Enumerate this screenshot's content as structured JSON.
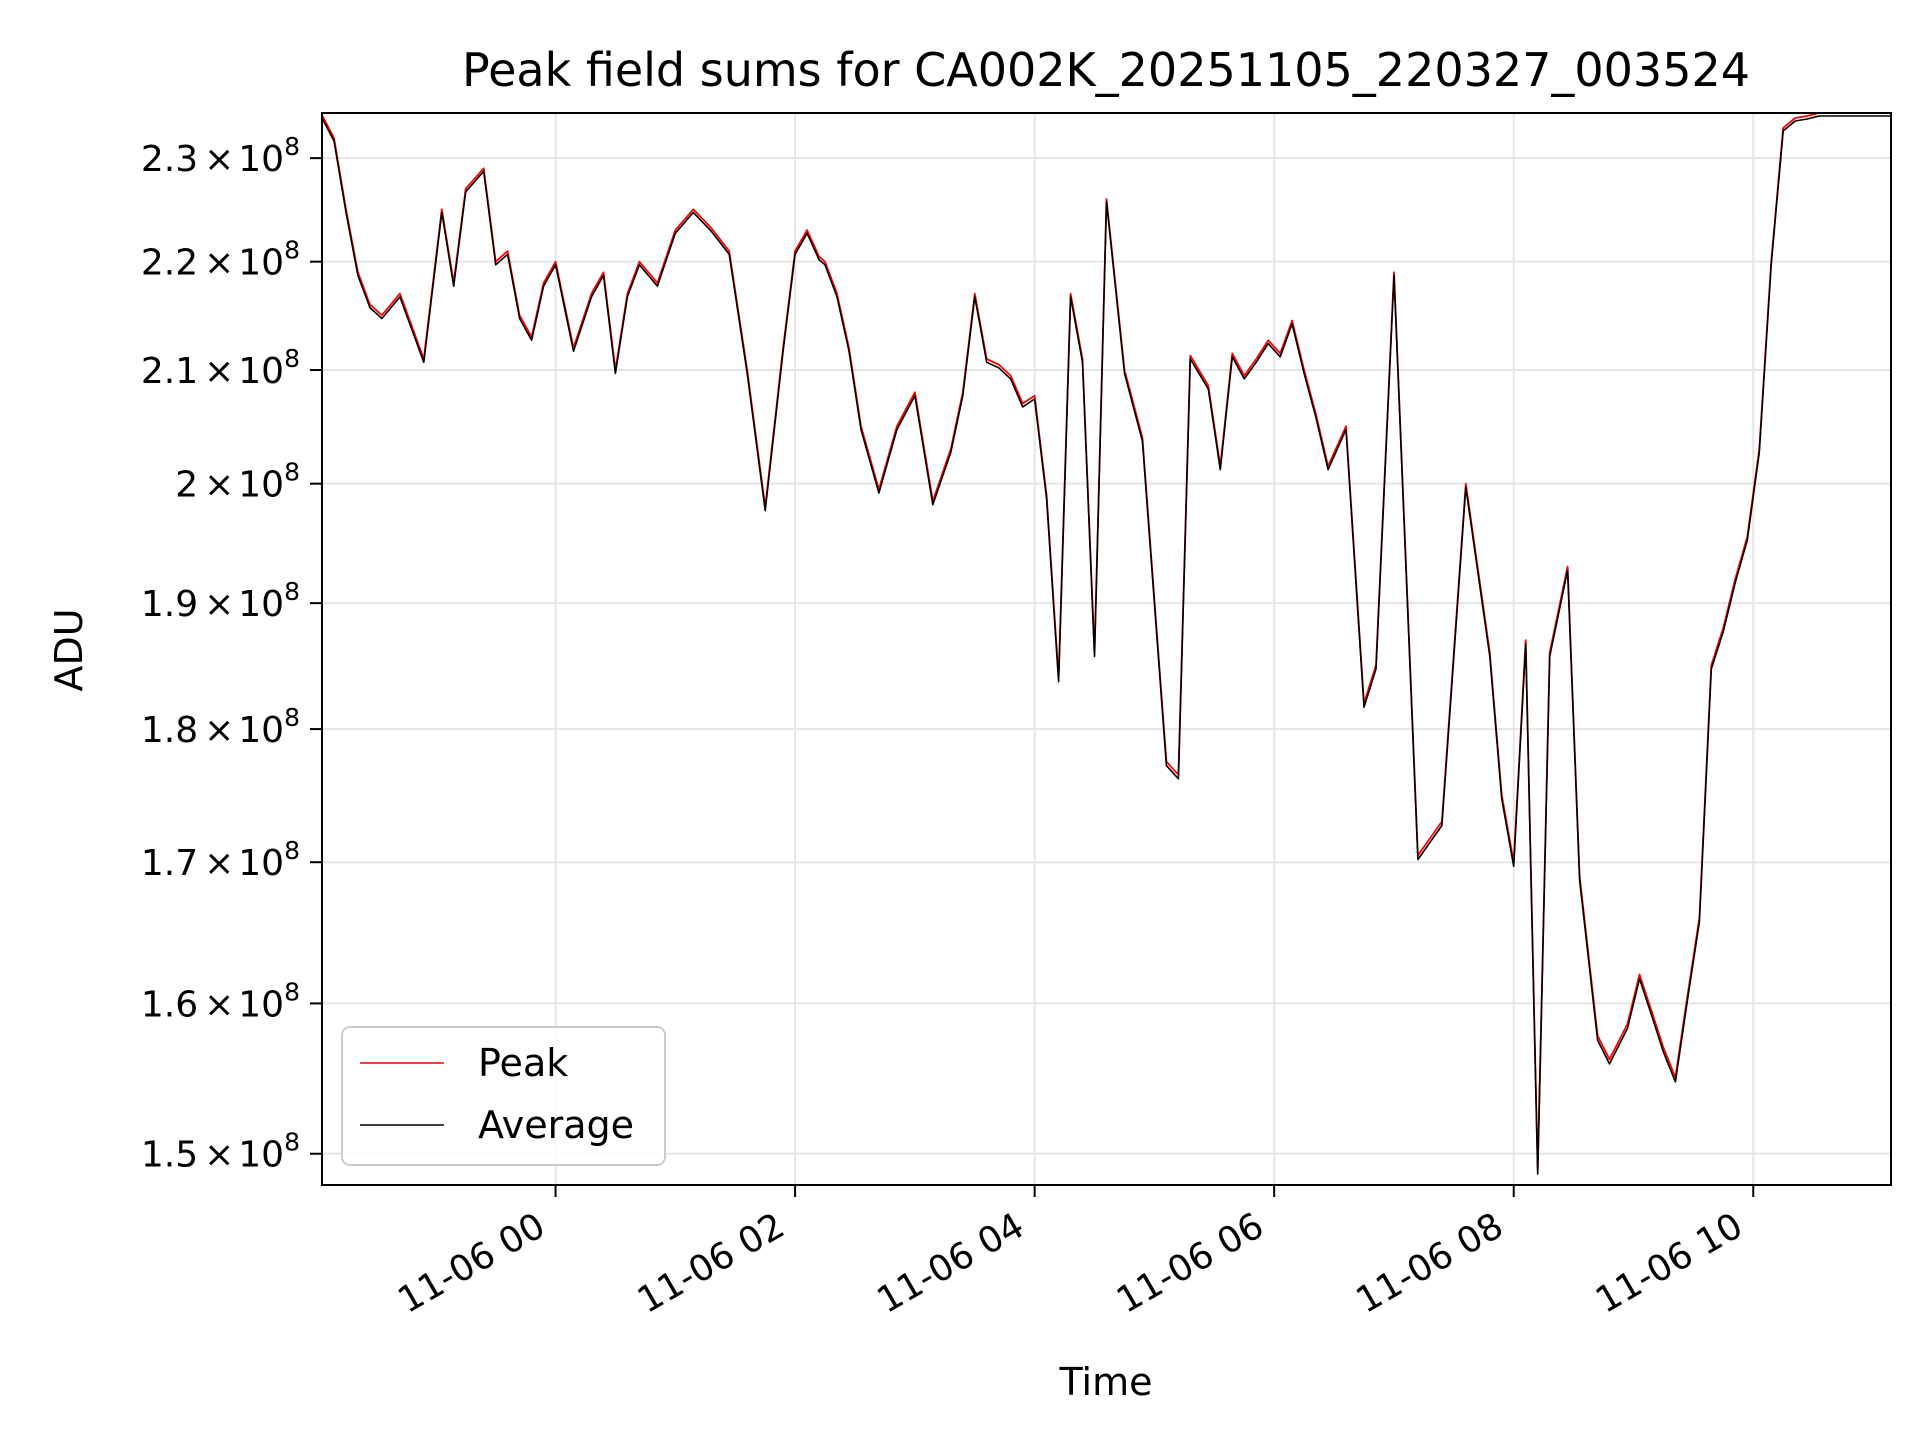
{
  "chart_data": {
    "type": "line",
    "title": "Peak field sums for CA002K_20251105_220327_003524",
    "xlabel": "Time",
    "ylabel": "ADU",
    "y_scale": "log",
    "x_axis": "time (hours, 2025-11-05 22:03 to 2025-11-06 11:08)",
    "xlim": [
      -1.95,
      11.15
    ],
    "ylim": [
      148000000,
      234500000
    ],
    "grid": true,
    "legend_position": "lower-left",
    "x_ticks": [
      {
        "value": 0,
        "label": "11-06 00"
      },
      {
        "value": 2,
        "label": "11-06 02"
      },
      {
        "value": 4,
        "label": "11-06 04"
      },
      {
        "value": 6,
        "label": "11-06 06"
      },
      {
        "value": 8,
        "label": "11-06 08"
      },
      {
        "value": 10,
        "label": "11-06 10"
      }
    ],
    "y_ticks": [
      {
        "value": 150000000,
        "mantissa": "1.5",
        "base": "10",
        "exp": "8"
      },
      {
        "value": 160000000,
        "mantissa": "1.6",
        "base": "10",
        "exp": "8"
      },
      {
        "value": 170000000,
        "mantissa": "1.7",
        "base": "10",
        "exp": "8"
      },
      {
        "value": 180000000,
        "mantissa": "1.8",
        "base": "10",
        "exp": "8"
      },
      {
        "value": 190000000,
        "mantissa": "1.9",
        "base": "10",
        "exp": "8"
      },
      {
        "value": 200000000,
        "mantissa": "2",
        "base": "10",
        "exp": "8"
      },
      {
        "value": 210000000,
        "mantissa": "2.1",
        "base": "10",
        "exp": "8"
      },
      {
        "value": 220000000,
        "mantissa": "2.2",
        "base": "10",
        "exp": "8"
      },
      {
        "value": 230000000,
        "mantissa": "2.3",
        "base": "10",
        "exp": "8"
      }
    ],
    "x": [
      -1.95,
      -1.85,
      -1.75,
      -1.65,
      -1.55,
      -1.45,
      -1.3,
      -1.2,
      -1.1,
      -0.95,
      -0.85,
      -0.75,
      -0.6,
      -0.5,
      -0.4,
      -0.3,
      -0.2,
      -0.1,
      0.0,
      0.15,
      0.3,
      0.4,
      0.5,
      0.6,
      0.7,
      0.85,
      1.0,
      1.15,
      1.3,
      1.45,
      1.6,
      1.75,
      1.9,
      2.0,
      2.1,
      2.2,
      2.25,
      2.35,
      2.45,
      2.55,
      2.7,
      2.85,
      3.0,
      3.15,
      3.3,
      3.4,
      3.5,
      3.6,
      3.7,
      3.8,
      3.9,
      4.0,
      4.1,
      4.2,
      4.3,
      4.4,
      4.5,
      4.6,
      4.75,
      4.9,
      5.1,
      5.2,
      5.3,
      5.45,
      5.55,
      5.65,
      5.75,
      5.85,
      5.95,
      6.05,
      6.15,
      6.25,
      6.35,
      6.45,
      6.6,
      6.75,
      6.85,
      7.0,
      7.2,
      7.4,
      7.6,
      7.8,
      7.9,
      8.0,
      8.1,
      8.2,
      8.3,
      8.45,
      8.55,
      8.7,
      8.8,
      8.95,
      9.05,
      9.15,
      9.25,
      9.35,
      9.45,
      9.55,
      9.65,
      9.75,
      9.85,
      9.95,
      10.05,
      10.15,
      10.25,
      10.35,
      10.45,
      10.55,
      10.65,
      10.75,
      10.85,
      10.95,
      11.05,
      11.15
    ],
    "series": [
      {
        "name": "Peak",
        "color": "#ff0000",
        "values": [
          234300000,
          232000000,
          225000000,
          219000000,
          216000000,
          215000000,
          217000000,
          214000000,
          211000000,
          225000000,
          218000000,
          227000000,
          229000000,
          220000000,
          221000000,
          215000000,
          213000000,
          218000000,
          220000000,
          212000000,
          217000000,
          219000000,
          210000000,
          217000000,
          220000000,
          218000000,
          223000000,
          225000000,
          223200000,
          221000000,
          210000000,
          198000000,
          212000000,
          221000000,
          223000000,
          220500000,
          220000000,
          217000000,
          212000000,
          205000000,
          199500000,
          205000000,
          208000000,
          198500000,
          203000000,
          208000000,
          217000000,
          211000000,
          210500000,
          209500000,
          207000000,
          207700000,
          199000000,
          184000000,
          217000000,
          211000000,
          186000000,
          226000000,
          210000000,
          204000000,
          177500000,
          176500000,
          211300000,
          208600000,
          201500000,
          211500000,
          209500000,
          211000000,
          212700000,
          211500000,
          214500000,
          210000000,
          206000000,
          201500000,
          205000000,
          182000000,
          185000000,
          219000000,
          170500000,
          173000000,
          200000000,
          186000000,
          175000000,
          170000000,
          187000000,
          149000000,
          186000000,
          193000000,
          169000000,
          157800000,
          156200000,
          158600000,
          162000000,
          159500000,
          157000000,
          155000000,
          160500000,
          166000000,
          185000000,
          188000000,
          192000000,
          195500000,
          203000000,
          220000000,
          233000000,
          234000000,
          234200000,
          234500000,
          234500000,
          234500000,
          234500000,
          234500000,
          234500000,
          234500000
        ]
      },
      {
        "name": "Average",
        "color": "#000000",
        "values": [
          234000000,
          231700000,
          224700000,
          218700000,
          215700000,
          214700000,
          216700000,
          213700000,
          210700000,
          224700000,
          217700000,
          226700000,
          228700000,
          219700000,
          220700000,
          214700000,
          212700000,
          217700000,
          219700000,
          211700000,
          216700000,
          218700000,
          209700000,
          216700000,
          219700000,
          217700000,
          222700000,
          224700000,
          222900000,
          220700000,
          209700000,
          197700000,
          211700000,
          220700000,
          222700000,
          220200000,
          219700000,
          216700000,
          211700000,
          204700000,
          199200000,
          204700000,
          207700000,
          198200000,
          202700000,
          207700000,
          216700000,
          210700000,
          210200000,
          209200000,
          206700000,
          207400000,
          198700000,
          183700000,
          216700000,
          210700000,
          185700000,
          225700000,
          209700000,
          203700000,
          177200000,
          176200000,
          211000000,
          208300000,
          201200000,
          211200000,
          209200000,
          210700000,
          212400000,
          211200000,
          214200000,
          209700000,
          205700000,
          201200000,
          204700000,
          181700000,
          184700000,
          218700000,
          170200000,
          172700000,
          199700000,
          185700000,
          174700000,
          169700000,
          186700000,
          148700000,
          185700000,
          192700000,
          168700000,
          157500000,
          155900000,
          158300000,
          161700000,
          159200000,
          156700000,
          154700000,
          160200000,
          165700000,
          184700000,
          187700000,
          191700000,
          195200000,
          202700000,
          219700000,
          232700000,
          233700000,
          233900000,
          234200000,
          234200000,
          234200000,
          234200000,
          234200000,
          234200000,
          234200000
        ]
      }
    ]
  }
}
